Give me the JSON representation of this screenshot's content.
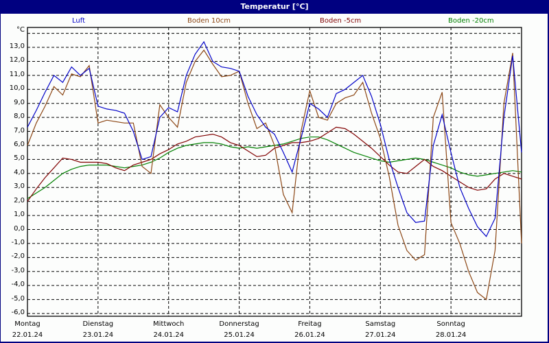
{
  "header": {
    "title": "Temperatur [°C]"
  },
  "legend": [
    {
      "label": "Luft",
      "color": "#0000c8"
    },
    {
      "label": "Boden 10cm",
      "color": "#8b4513"
    },
    {
      "label": "Boden -5cm",
      "color": "#800000"
    },
    {
      "label": "Boden -20cm",
      "color": "#008000"
    }
  ],
  "yaxis": {
    "unit": "°C",
    "ticks": [
      "13,0",
      "12,0",
      "11,0",
      "10,0",
      "9,0",
      "8,0",
      "7,0",
      "6,0",
      "5,0",
      "4,0",
      "3,0",
      "2,0",
      "1,0",
      "0,0",
      "-1,0",
      "-2,0",
      "-3,0",
      "-4,0",
      "-5,0",
      "-6,0"
    ]
  },
  "xaxis": {
    "days": [
      {
        "day": "Montag",
        "date": "22.01.24"
      },
      {
        "day": "Dienstag",
        "date": "23.01.24"
      },
      {
        "day": "Mittwoch",
        "date": "24.01.24"
      },
      {
        "day": "Donnerstag",
        "date": "25.01.24"
      },
      {
        "day": "Freitag",
        "date": "26.01.24"
      },
      {
        "day": "Samstag",
        "date": "27.01.24"
      },
      {
        "day": "Sonntag",
        "date": "28.01.24"
      }
    ]
  },
  "chart_data": {
    "type": "line",
    "title": "Temperatur [°C]",
    "xlabel": "",
    "ylabel": "°C",
    "ylim": [
      -6.2,
      14.5
    ],
    "grid": true,
    "legend_position": "top",
    "x_hours": [
      0,
      3,
      6,
      9,
      12,
      15,
      18,
      21,
      24,
      27,
      30,
      33,
      36,
      39,
      42,
      45,
      48,
      51,
      54,
      57,
      60,
      63,
      66,
      69,
      72,
      75,
      78,
      81,
      84,
      87,
      90,
      93,
      96,
      99,
      102,
      105,
      108,
      111,
      114,
      117,
      120,
      123,
      126,
      129,
      132,
      135,
      138,
      141,
      144,
      147,
      150,
      153,
      156,
      159,
      162,
      165,
      168
    ],
    "categories": [
      "22.01.24",
      "23.01.24",
      "24.01.24",
      "25.01.24",
      "26.01.24",
      "27.01.24",
      "28.01.24"
    ],
    "series": [
      {
        "name": "Luft",
        "color": "#0000c8",
        "values": [
          7.3,
          8.5,
          9.8,
          11.0,
          10.5,
          11.6,
          11.0,
          11.5,
          8.8,
          8.6,
          8.5,
          8.3,
          7.0,
          5.0,
          5.2,
          8.0,
          8.7,
          8.4,
          11.0,
          12.5,
          13.4,
          12.0,
          11.6,
          11.5,
          11.3,
          9.5,
          8.2,
          7.3,
          6.8,
          5.5,
          4.1,
          6.5,
          9.0,
          8.6,
          8.0,
          9.7,
          10.0,
          10.5,
          11.0,
          9.5,
          7.5,
          5.0,
          3.0,
          1.2,
          0.5,
          0.6,
          6.0,
          8.2,
          5.5,
          3.0,
          1.5,
          0.2,
          -0.5,
          0.8,
          8.0,
          12.4,
          5.5
        ]
      },
      {
        "name": "Boden 10cm",
        "color": "#8b4513",
        "values": [
          6.0,
          7.6,
          8.8,
          10.2,
          9.6,
          11.1,
          10.9,
          11.7,
          7.6,
          7.8,
          7.7,
          7.6,
          7.6,
          4.5,
          4.0,
          8.9,
          8.0,
          7.3,
          10.5,
          12.0,
          12.8,
          11.8,
          10.9,
          11.0,
          11.3,
          9.0,
          7.2,
          7.6,
          6.0,
          2.5,
          1.2,
          7.0,
          9.9,
          8.0,
          7.8,
          9.0,
          9.4,
          9.6,
          10.5,
          8.3,
          6.5,
          3.8,
          0.3,
          -1.5,
          -2.2,
          -1.8,
          8.0,
          9.8,
          0.5,
          -1.0,
          -3.0,
          -4.5,
          -5.0,
          -1.5,
          9.0,
          12.6,
          -1.0
        ]
      },
      {
        "name": "Boden -5cm",
        "color": "#800000",
        "values": [
          2.0,
          2.9,
          3.7,
          4.4,
          5.1,
          5.0,
          4.8,
          4.8,
          4.8,
          4.7,
          4.4,
          4.2,
          4.6,
          4.8,
          5.0,
          5.4,
          5.7,
          6.1,
          6.3,
          6.6,
          6.7,
          6.8,
          6.6,
          6.2,
          6.0,
          5.6,
          5.2,
          5.3,
          5.8,
          6.0,
          6.2,
          6.2,
          6.3,
          6.5,
          6.9,
          7.3,
          7.2,
          6.8,
          6.3,
          5.8,
          5.2,
          4.6,
          4.1,
          4.0,
          4.5,
          5.0,
          4.5,
          4.2,
          3.8,
          3.4,
          3.0,
          2.8,
          2.9,
          3.6,
          4.0,
          3.8,
          3.6
        ]
      },
      {
        "name": "Boden -20cm",
        "color": "#008000",
        "values": [
          2.2,
          2.6,
          3.0,
          3.5,
          4.0,
          4.3,
          4.5,
          4.6,
          4.6,
          4.6,
          4.5,
          4.4,
          4.5,
          4.6,
          4.8,
          5.1,
          5.5,
          5.8,
          6.0,
          6.1,
          6.2,
          6.2,
          6.1,
          5.9,
          5.8,
          5.9,
          5.8,
          5.9,
          6.0,
          6.1,
          6.3,
          6.5,
          6.6,
          6.6,
          6.4,
          6.1,
          5.8,
          5.5,
          5.3,
          5.1,
          4.9,
          4.8,
          4.9,
          5.0,
          5.1,
          5.0,
          4.8,
          4.6,
          4.4,
          4.1,
          3.9,
          3.8,
          3.9,
          4.0,
          4.1,
          4.2,
          4.1
        ]
      }
    ]
  }
}
